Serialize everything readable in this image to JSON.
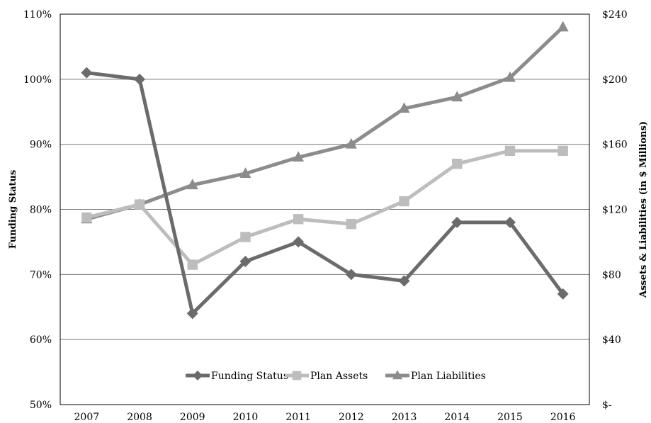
{
  "chart_data": {
    "type": "line",
    "categories": [
      "2007",
      "2008",
      "2009",
      "2010",
      "2011",
      "2012",
      "2013",
      "2014",
      "2015",
      "2016"
    ],
    "left_axis": {
      "label": "Funding Status",
      "ylim": [
        0.5,
        1.1
      ],
      "ticks": [
        0.5,
        0.6,
        0.7,
        0.8,
        0.9,
        1.0,
        1.1
      ],
      "tick_labels": [
        "50%",
        "60%",
        "70%",
        "80%",
        "90%",
        "100%",
        "110%"
      ]
    },
    "right_axis": {
      "label": "Assets & Liabilities (in $ Millions)",
      "ylim": [
        0,
        240
      ],
      "ticks": [
        0,
        40,
        80,
        120,
        160,
        200,
        240
      ],
      "tick_labels": [
        "$-",
        "$40",
        "$80",
        "$120",
        "$160",
        "$200",
        "$240"
      ]
    },
    "series": [
      {
        "name": "Funding Status",
        "axis": "left",
        "marker": "diamond",
        "color": "#6b6b6b",
        "values": [
          1.01,
          1.0,
          0.64,
          0.72,
          0.75,
          0.7,
          0.69,
          0.78,
          0.78,
          0.67
        ]
      },
      {
        "name": "Plan Assets",
        "axis": "right",
        "marker": "square",
        "color": "#bdbdbd",
        "values": [
          115,
          123,
          86,
          103,
          114,
          111,
          125,
          148,
          156,
          156
        ]
      },
      {
        "name": "Plan Liabilities",
        "axis": "right",
        "marker": "triangle",
        "color": "#8c8c8c",
        "values": [
          114,
          123,
          135,
          142,
          152,
          160,
          182,
          189,
          201,
          232
        ]
      }
    ],
    "grid": true,
    "legend_position": "bottom-center"
  }
}
